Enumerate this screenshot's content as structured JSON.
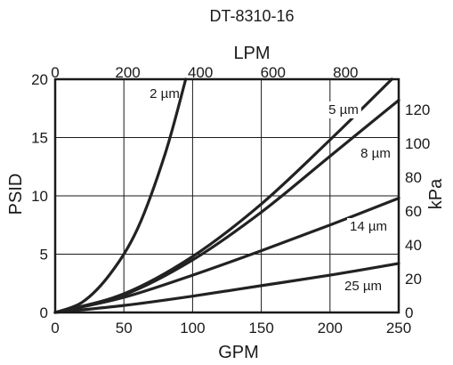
{
  "chart_data": {
    "type": "line",
    "title": "DT-8310-16",
    "xlabel": "GPM",
    "ylabel": "PSID",
    "x2label": "LPM",
    "y2label": "kPa",
    "xlim": [
      0,
      250
    ],
    "ylim": [
      0,
      20
    ],
    "x2lim": [
      0,
      946.25
    ],
    "y2lim": [
      0,
      137.9
    ],
    "grid": true,
    "x_ticks": [
      0,
      50,
      100,
      150,
      200,
      250
    ],
    "y_ticks": [
      0,
      5,
      10,
      15,
      20
    ],
    "x2_ticks": [
      0,
      200,
      400,
      600,
      800
    ],
    "y2_ticks": [
      0,
      20,
      40,
      60,
      80,
      100,
      120
    ],
    "series": [
      {
        "name": "2 µm",
        "x": [
          0,
          20,
          40,
          60,
          80,
          95
        ],
        "y": [
          0,
          0.9,
          3.3,
          7.2,
          13.6,
          20
        ]
      },
      {
        "name": "5 µm",
        "x": [
          0,
          50,
          100,
          150,
          200,
          245
        ],
        "y": [
          0,
          1.6,
          4.8,
          9.3,
          14.8,
          20
        ]
      },
      {
        "name": "8 µm",
        "x": [
          0,
          50,
          100,
          150,
          200,
          250
        ],
        "y": [
          0,
          1.5,
          4.5,
          8.6,
          13.4,
          18.2
        ]
      },
      {
        "name": "14 µm",
        "x": [
          0,
          50,
          100,
          150,
          200,
          250
        ],
        "y": [
          0,
          1.3,
          3.2,
          5.3,
          7.5,
          9.8
        ]
      },
      {
        "name": "25 µm",
        "x": [
          0,
          50,
          100,
          150,
          200,
          250
        ],
        "y": [
          0,
          0.6,
          1.4,
          2.3,
          3.2,
          4.2
        ]
      }
    ]
  }
}
